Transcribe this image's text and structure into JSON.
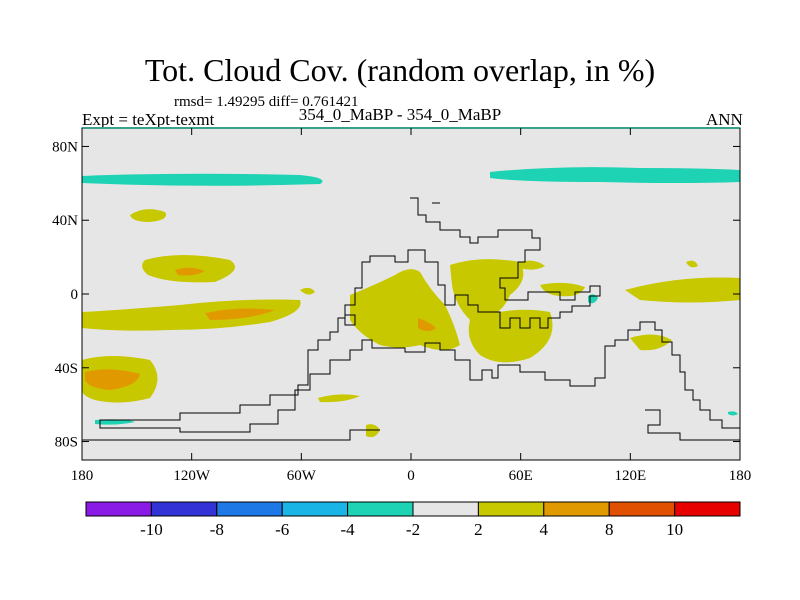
{
  "header": {
    "title": "Tot. Cloud Cov. (random overlap, in %)",
    "stats": "rmsd= 1.49295  diff= 0.761421",
    "left_label": "Expt = teXpt-texmt",
    "center_label": "354_0_MaBP - 354_0_MaBP",
    "right_label": "ANN"
  },
  "map": {
    "projection": "cylindrical equidistant",
    "lon_range": [
      -180,
      180
    ],
    "lat_range": [
      -90,
      90
    ],
    "background_color": "#e6e6e6",
    "coastline_color": "#000000",
    "lat_ticks": [
      {
        "value": 80,
        "label": "80N"
      },
      {
        "value": 40,
        "label": "40N"
      },
      {
        "value": 0,
        "label": "0"
      },
      {
        "value": -40,
        "label": "40S"
      },
      {
        "value": -80,
        "label": "80S"
      }
    ],
    "lon_ticks": [
      {
        "value": -180,
        "label": "180"
      },
      {
        "value": -120,
        "label": "120W"
      },
      {
        "value": -60,
        "label": "60W"
      },
      {
        "value": 0,
        "label": "0"
      },
      {
        "value": 60,
        "label": "60E"
      },
      {
        "value": 120,
        "label": "120E"
      },
      {
        "value": 180,
        "label": "180"
      }
    ]
  },
  "colorbar": {
    "colors": [
      "#8a1ae6",
      "#3232d6",
      "#1e78e6",
      "#1ab4e6",
      "#1ed2b4",
      "#e6e6e6",
      "#c8c800",
      "#e09a00",
      "#e05000",
      "#e60000"
    ],
    "labels": [
      "-10",
      "-8",
      "-6",
      "-4",
      "-2",
      "2",
      "4",
      "8",
      "10"
    ]
  }
}
